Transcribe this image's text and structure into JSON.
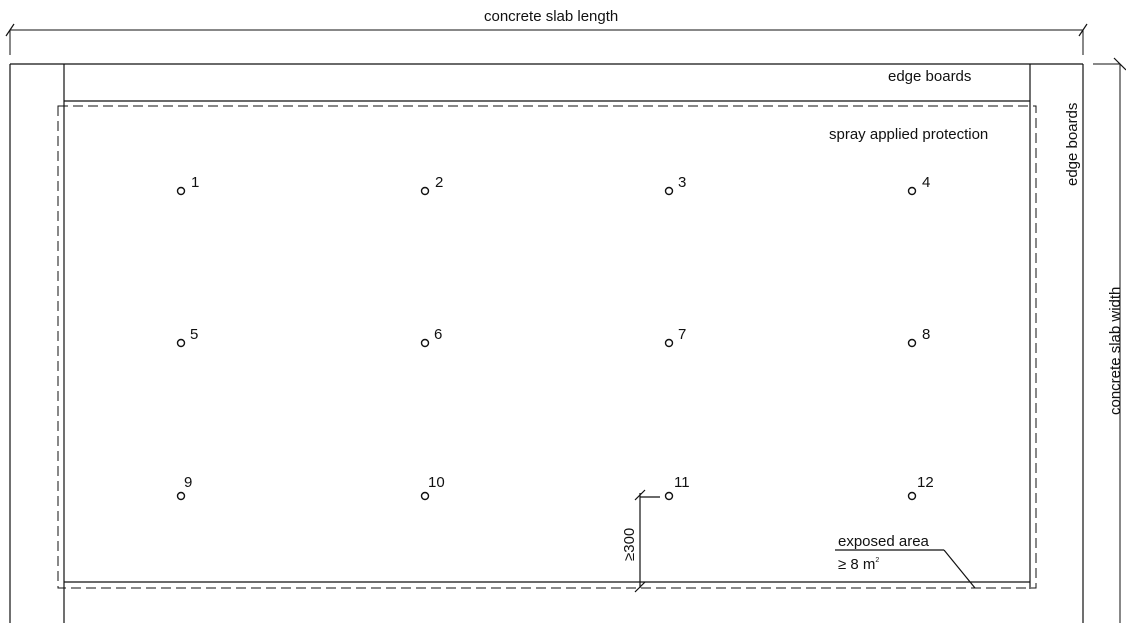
{
  "labels": {
    "slab_length": "concrete slab length",
    "slab_width": "concrete slab width",
    "edge_boards_top": "edge boards",
    "edge_boards_right": "edge boards",
    "spray_protection": "spray applied protection",
    "clearance": "≥300",
    "exposed_area_line1": "exposed area",
    "exposed_area_line2": "≥ 8 m",
    "exposed_area_unit_sup": "2"
  },
  "test_points": [
    {
      "id": "1"
    },
    {
      "id": "2"
    },
    {
      "id": "3"
    },
    {
      "id": "4"
    },
    {
      "id": "5"
    },
    {
      "id": "6"
    },
    {
      "id": "7"
    },
    {
      "id": "8"
    },
    {
      "id": "9"
    },
    {
      "id": "10"
    },
    {
      "id": "11"
    },
    {
      "id": "12"
    }
  ]
}
